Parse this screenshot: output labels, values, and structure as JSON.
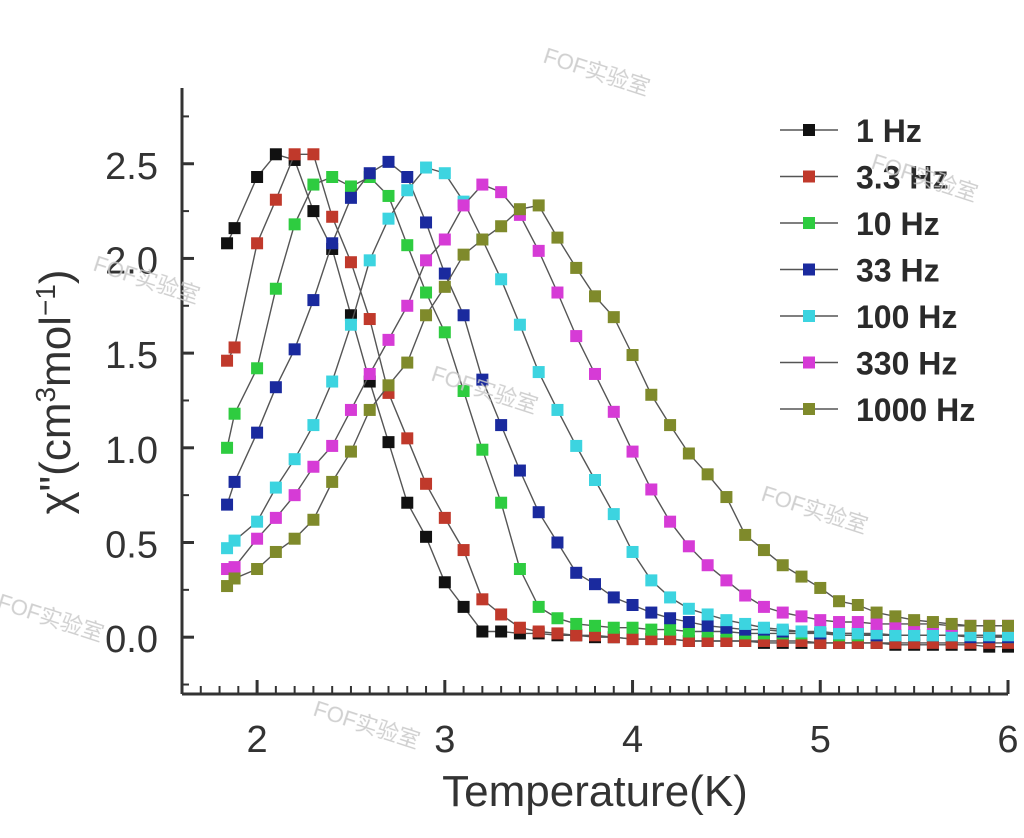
{
  "chart_data": {
    "type": "scatter",
    "xlabel": "Temperature(K)",
    "ylabel_parts": {
      "base": "χ\"(cm",
      "sup1": "3",
      "mid": "mol",
      "sup2": "−1",
      "end": ")"
    },
    "xlim": [
      1.6,
      6.0
    ],
    "ylim": [
      -0.3,
      2.9
    ],
    "x_ticks": [
      2,
      3,
      4,
      5,
      6
    ],
    "y_ticks": [
      0.0,
      0.5,
      1.0,
      1.5,
      2.0,
      2.5
    ],
    "x_tick_labels": [
      "2",
      "3",
      "4",
      "5",
      "6"
    ],
    "y_tick_labels": [
      "0.0",
      "0.5",
      "1.0",
      "1.5",
      "2.0",
      "2.5"
    ],
    "legend_position": "top-right",
    "grid": false,
    "x": [
      1.84,
      1.88,
      2.0,
      2.1,
      2.2,
      2.3,
      2.4,
      2.5,
      2.6,
      2.7,
      2.8,
      2.9,
      3.0,
      3.1,
      3.2,
      3.3,
      3.4,
      3.5,
      3.6,
      3.7,
      3.8,
      3.9,
      4.0,
      4.1,
      4.2,
      4.3,
      4.4,
      4.5,
      4.6,
      4.7,
      4.8,
      4.9,
      5.0,
      5.1,
      5.2,
      5.3,
      5.4,
      5.5,
      5.6,
      5.7,
      5.8,
      5.9,
      6.0
    ],
    "series": [
      {
        "name": "1 Hz",
        "color": "#111111",
        "values": [
          2.08,
          2.16,
          2.43,
          2.55,
          2.52,
          2.25,
          2.05,
          1.7,
          1.35,
          1.03,
          0.71,
          0.53,
          0.29,
          0.16,
          0.03,
          0.03,
          0.02,
          0.02,
          0.01,
          0.01,
          0.0,
          0.0,
          -0.01,
          -0.01,
          -0.01,
          -0.02,
          -0.02,
          -0.02,
          -0.02,
          -0.03,
          -0.03,
          -0.03,
          -0.03,
          -0.03,
          -0.03,
          -0.03,
          -0.04,
          -0.04,
          -0.04,
          -0.04,
          -0.04,
          -0.05,
          -0.05
        ]
      },
      {
        "name": "3.3 Hz",
        "color": "#c0392b",
        "values": [
          1.46,
          1.53,
          2.08,
          2.31,
          2.55,
          2.55,
          2.22,
          1.98,
          1.68,
          1.29,
          1.05,
          0.81,
          0.63,
          0.46,
          0.2,
          0.12,
          0.05,
          0.03,
          0.02,
          0.01,
          0.01,
          0.0,
          -0.01,
          -0.01,
          -0.01,
          -0.02,
          -0.02,
          -0.02,
          -0.02,
          -0.02,
          -0.02,
          -0.02,
          -0.03,
          -0.03,
          -0.03,
          -0.03,
          -0.03,
          -0.03,
          -0.03,
          -0.03,
          -0.03,
          -0.03,
          -0.03
        ]
      },
      {
        "name": "10 Hz",
        "color": "#2ecc40",
        "values": [
          1.0,
          1.18,
          1.42,
          1.84,
          2.18,
          2.39,
          2.43,
          2.38,
          2.43,
          2.33,
          2.07,
          1.82,
          1.61,
          1.3,
          0.99,
          0.71,
          0.36,
          0.16,
          0.1,
          0.07,
          0.06,
          0.05,
          0.05,
          0.04,
          0.04,
          0.03,
          0.03,
          0.03,
          0.02,
          0.02,
          0.02,
          0.02,
          0.02,
          0.01,
          0.01,
          0.01,
          0.01,
          0.01,
          0.01,
          0.01,
          0.01,
          0.01,
          0.0
        ]
      },
      {
        "name": "33 Hz",
        "color": "#1a2a9e",
        "values": [
          0.7,
          0.82,
          1.08,
          1.32,
          1.52,
          1.78,
          2.08,
          2.32,
          2.45,
          2.51,
          2.43,
          2.19,
          1.92,
          1.7,
          1.36,
          1.12,
          0.88,
          0.66,
          0.5,
          0.34,
          0.28,
          0.21,
          0.17,
          0.13,
          0.1,
          0.08,
          0.06,
          0.05,
          0.04,
          0.04,
          0.03,
          0.03,
          0.02,
          0.02,
          0.02,
          0.01,
          0.01,
          0.01,
          0.01,
          0.01,
          0.0,
          0.0,
          0.0
        ]
      },
      {
        "name": "100 Hz",
        "color": "#3cd4e0",
        "values": [
          0.47,
          0.51,
          0.61,
          0.79,
          0.94,
          1.12,
          1.35,
          1.65,
          1.99,
          2.21,
          2.36,
          2.48,
          2.45,
          2.3,
          2.1,
          1.89,
          1.65,
          1.4,
          1.2,
          1.01,
          0.83,
          0.65,
          0.45,
          0.3,
          0.21,
          0.15,
          0.12,
          0.09,
          0.07,
          0.05,
          0.04,
          0.03,
          0.03,
          0.02,
          0.02,
          0.02,
          0.01,
          0.01,
          0.01,
          0.01,
          0.01,
          0.01,
          0.01
        ]
      },
      {
        "name": "330 Hz",
        "color": "#d63bd6",
        "values": [
          0.36,
          0.37,
          0.52,
          0.63,
          0.75,
          0.9,
          1.01,
          1.2,
          1.39,
          1.57,
          1.75,
          1.99,
          2.1,
          2.28,
          2.39,
          2.35,
          2.23,
          2.04,
          1.82,
          1.59,
          1.39,
          1.19,
          0.98,
          0.78,
          0.61,
          0.48,
          0.38,
          0.3,
          0.22,
          0.16,
          0.13,
          0.11,
          0.09,
          0.08,
          0.08,
          0.07,
          0.07,
          0.07,
          0.07,
          0.06,
          0.06,
          0.06,
          0.06
        ]
      },
      {
        "name": "1000 Hz",
        "color": "#7f8a2b",
        "values": [
          0.27,
          0.31,
          0.36,
          0.45,
          0.52,
          0.62,
          0.82,
          0.98,
          1.2,
          1.33,
          1.45,
          1.7,
          1.85,
          2.02,
          2.1,
          2.17,
          2.26,
          2.28,
          2.11,
          1.95,
          1.8,
          1.69,
          1.49,
          1.28,
          1.12,
          0.97,
          0.86,
          0.74,
          0.54,
          0.46,
          0.38,
          0.32,
          0.26,
          0.19,
          0.17,
          0.13,
          0.11,
          0.09,
          0.08,
          0.07,
          0.06,
          0.06,
          0.06
        ]
      }
    ]
  },
  "watermark": "FOF实验室"
}
